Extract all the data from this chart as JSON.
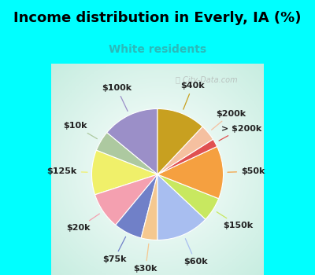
{
  "title": "Income distribution in Everly, IA (%)",
  "subtitle": "White residents",
  "title_color": "#000000",
  "subtitle_color": "#2ababa",
  "background_color": "#00ffff",
  "watermark": "City-Data.com",
  "slices": [
    {
      "label": "$100k",
      "value": 14,
      "color": "#9b8fc8"
    },
    {
      "label": "$10k",
      "value": 5,
      "color": "#adc9a0"
    },
    {
      "label": "$125k",
      "value": 11,
      "color": "#f0f06a"
    },
    {
      "label": "$20k",
      "value": 9,
      "color": "#f4a0b0"
    },
    {
      "label": "$75k",
      "value": 7,
      "color": "#7080c8"
    },
    {
      "label": "$30k",
      "value": 4,
      "color": "#f5c890"
    },
    {
      "label": "$60k",
      "value": 13,
      "color": "#a8bef0"
    },
    {
      "label": "$150k",
      "value": 6,
      "color": "#c8e860"
    },
    {
      "label": "$50k",
      "value": 13,
      "color": "#f5a040"
    },
    {
      "label": "> $200k",
      "value": 2,
      "color": "#e05050"
    },
    {
      "label": "$200k",
      "value": 4,
      "color": "#f5c0a0"
    },
    {
      "label": "$40k",
      "value": 12,
      "color": "#c8a020"
    }
  ],
  "label_fontsize": 8,
  "title_fontsize": 13,
  "subtitle_fontsize": 10
}
